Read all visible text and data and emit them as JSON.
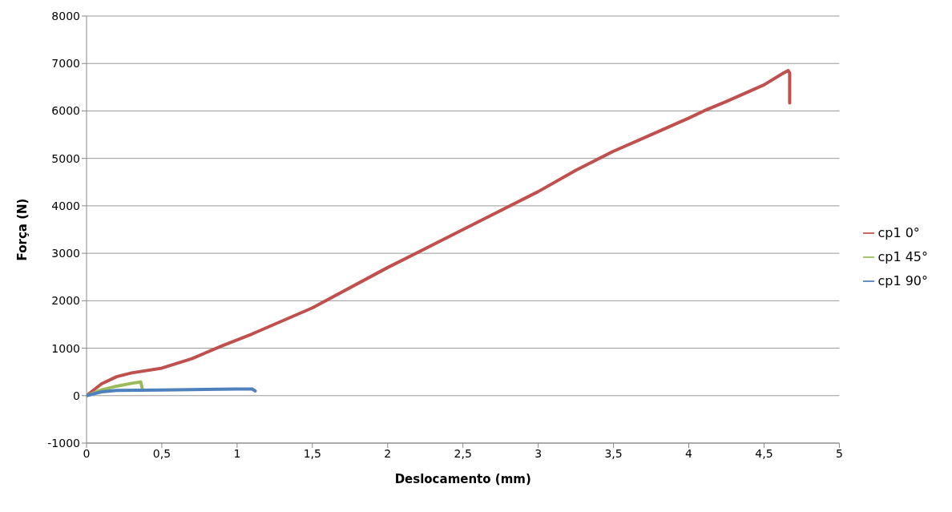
{
  "chart_data": {
    "type": "line",
    "xlabel": "Deslocamento (mm)",
    "ylabel": "Força (N)",
    "xlim": [
      0,
      5
    ],
    "xticks": [
      0,
      {
        "value": 0.5,
        "label": "0,5"
      },
      1,
      {
        "value": 1.5,
        "label": "1,5"
      },
      2,
      {
        "value": 2.5,
        "label": "2,5"
      },
      3,
      {
        "value": 3.5,
        "label": "3,5"
      },
      4,
      {
        "value": 4.5,
        "label": "4,5"
      },
      5
    ],
    "ylim": [
      -1000,
      8000
    ],
    "yticks": [
      -1000,
      0,
      1000,
      2000,
      3000,
      4000,
      5000,
      6000,
      7000,
      8000
    ],
    "grid": "y",
    "legend": "right",
    "marker": "none",
    "line_style": "solid",
    "series": [
      {
        "name": "cp1 0°",
        "color": "#c0504d",
        "x": [
          0,
          0.1,
          0.2,
          0.3,
          0.5,
          0.7,
          0.9,
          1.1,
          1.5,
          2,
          2.5,
          3,
          3.25,
          3.5,
          3.75,
          4,
          4.1,
          4.25,
          4.5,
          4.63,
          4.66,
          4.67,
          4.67
        ],
        "values": [
          0,
          250,
          400,
          480,
          580,
          780,
          1050,
          1300,
          1850,
          2700,
          3500,
          4300,
          4750,
          5150,
          5500,
          5850,
          6000,
          6200,
          6550,
          6800,
          6850,
          6800,
          6170
        ]
      },
      {
        "name": "cp1 45°",
        "color": "#9bbb59",
        "x": [
          0,
          0.1,
          0.2,
          0.3,
          0.36,
          0.37
        ],
        "values": [
          0,
          120,
          200,
          260,
          290,
          150
        ]
      },
      {
        "name": "cp1 90°",
        "color": "#4f81bd",
        "x": [
          0,
          0.1,
          0.2,
          0.5,
          1,
          1.1,
          1.12
        ],
        "values": [
          0,
          80,
          110,
          120,
          140,
          140,
          100
        ]
      }
    ]
  }
}
